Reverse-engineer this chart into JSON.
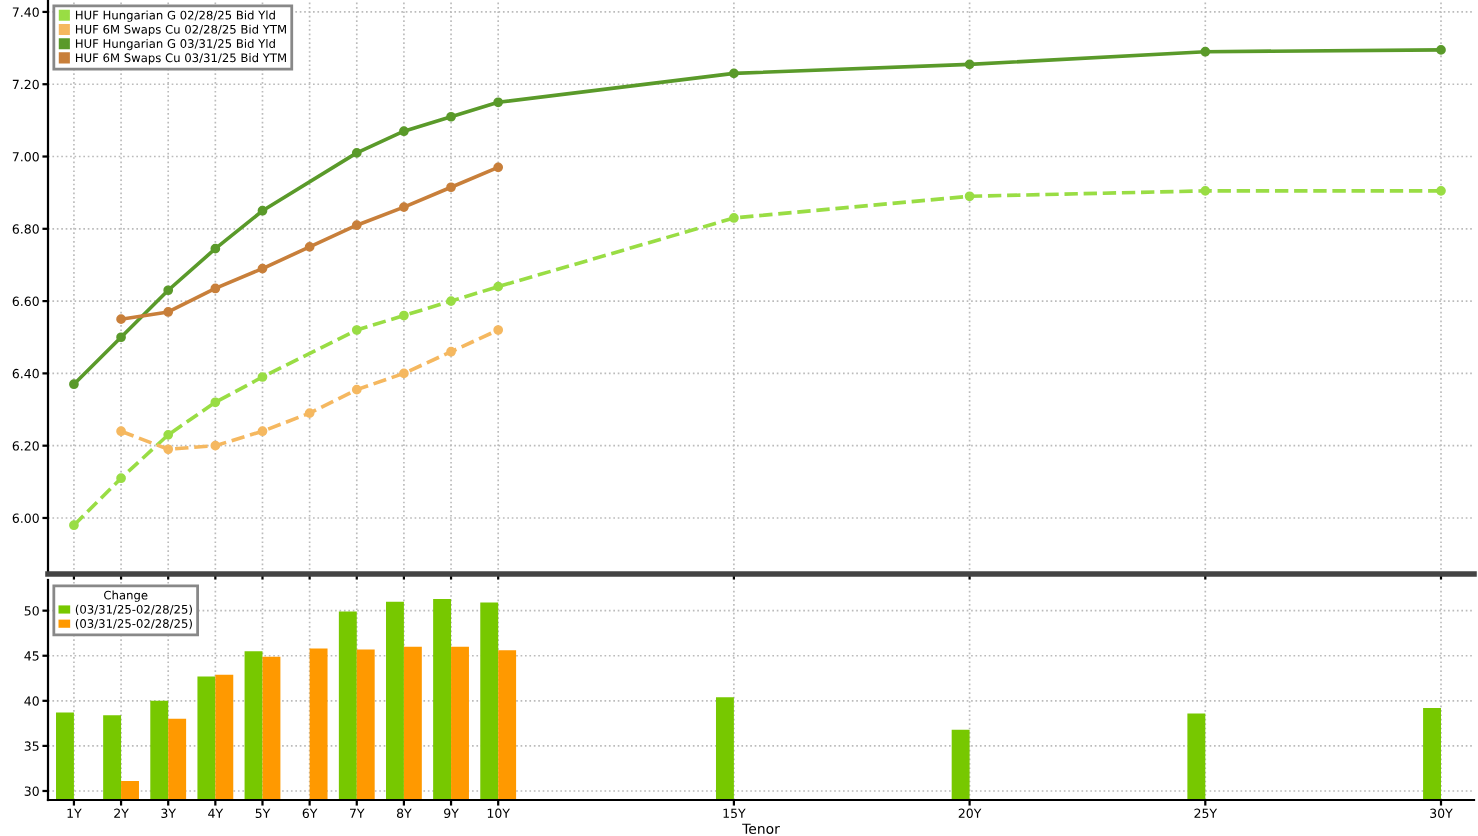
{
  "chart_data": [
    {
      "type": "line",
      "xlim": [
        0.45,
        30.7
      ],
      "ylim": [
        5.845,
        7.433
      ],
      "xticks": [
        {
          "value": 1,
          "label": null
        },
        {
          "value": 2,
          "label": null
        },
        {
          "value": 3,
          "label": null
        },
        {
          "value": 4,
          "label": null
        },
        {
          "value": 5,
          "label": null
        },
        {
          "value": 6,
          "label": null
        },
        {
          "value": 7,
          "label": null
        },
        {
          "value": 8,
          "label": null
        },
        {
          "value": 9,
          "label": null
        },
        {
          "value": 10,
          "label": null
        },
        {
          "value": 15,
          "label": null
        },
        {
          "value": 20,
          "label": null
        },
        {
          "value": 25,
          "label": null
        },
        {
          "value": 30,
          "label": null
        }
      ],
      "yticks": [
        {
          "value": 6.0,
          "label": "6.00"
        },
        {
          "value": 6.2,
          "label": "6.20"
        },
        {
          "value": 6.4,
          "label": "6.40"
        },
        {
          "value": 6.6,
          "label": "6.60"
        },
        {
          "value": 6.8,
          "label": "6.80"
        },
        {
          "value": 7.0,
          "label": "7.00"
        },
        {
          "value": 7.2,
          "label": "7.20"
        },
        {
          "value": 7.4,
          "label": "7.40"
        }
      ],
      "tick_labels": "y",
      "grid": true,
      "legend": "top left",
      "marker": "circle",
      "series": [
        {
          "name": "HUF Hungarian G 02/28/25 Bid Yld",
          "color": "#99dd44",
          "line_style": "dashed",
          "x": [
            1,
            2,
            3,
            4,
            5,
            7,
            8,
            9,
            10,
            15,
            20,
            25,
            30
          ],
          "values": [
            5.98,
            6.11,
            6.23,
            6.32,
            6.39,
            6.52,
            6.56,
            6.6,
            6.64,
            6.83,
            6.89,
            6.905,
            6.905
          ]
        },
        {
          "name": "HUF 6M Swaps Cu 02/28/25 Bid YTM",
          "color": "#f5b860",
          "line_style": "dashed",
          "x": [
            2,
            3,
            4,
            5,
            6,
            7,
            8,
            9,
            10
          ],
          "values": [
            6.24,
            6.19,
            6.2,
            6.24,
            6.29,
            6.355,
            6.4,
            6.46,
            6.52
          ]
        },
        {
          "name": "HUF Hungarian G 03/31/25 Bid Yld",
          "color": "#5a9a2a",
          "line_style": "solid",
          "x": [
            1,
            2,
            3,
            4,
            5,
            7,
            8,
            9,
            10,
            15,
            20,
            25,
            30
          ],
          "values": [
            6.37,
            6.5,
            6.63,
            6.745,
            6.85,
            7.01,
            7.07,
            7.11,
            7.15,
            7.23,
            7.255,
            7.29,
            7.295
          ]
        },
        {
          "name": "HUF 6M Swaps Cu 03/31/25 Bid YTM",
          "color": "#c87f3a",
          "line_style": "solid",
          "x": [
            2,
            3,
            4,
            5,
            6,
            7,
            8,
            9,
            10
          ],
          "values": [
            6.55,
            6.57,
            6.635,
            6.69,
            6.75,
            6.81,
            6.86,
            6.915,
            6.97
          ]
        }
      ]
    },
    {
      "type": "bar",
      "xlabel": "Tenor",
      "legend_title": "Change",
      "xlim": [
        0.45,
        30.7
      ],
      "ylim": [
        29,
        53.4
      ],
      "xticks": [
        {
          "value": 1,
          "label": "1Y"
        },
        {
          "value": 2,
          "label": "2Y"
        },
        {
          "value": 3,
          "label": "3Y"
        },
        {
          "value": 4,
          "label": "4Y"
        },
        {
          "value": 5,
          "label": "5Y"
        },
        {
          "value": 6,
          "label": "6Y"
        },
        {
          "value": 7,
          "label": "7Y"
        },
        {
          "value": 8,
          "label": "8Y"
        },
        {
          "value": 9,
          "label": "9Y"
        },
        {
          "value": 10,
          "label": "10Y"
        },
        {
          "value": 15,
          "label": "15Y"
        },
        {
          "value": 20,
          "label": "20Y"
        },
        {
          "value": 25,
          "label": "25Y"
        },
        {
          "value": 30,
          "label": "30Y"
        }
      ],
      "yticks": [
        30,
        35,
        40,
        45,
        50
      ],
      "grid": true,
      "legend": "top left",
      "series": [
        {
          "name": "(03/31/25-02/28/25)",
          "color": "#77c800",
          "x": [
            1,
            2,
            3,
            4,
            5,
            7,
            8,
            9,
            10,
            15,
            20,
            25,
            30
          ],
          "values": [
            38.7,
            38.4,
            40,
            42.7,
            45.5,
            49.9,
            51,
            51.3,
            50.9,
            40.4,
            36.8,
            38.6,
            39.2
          ]
        },
        {
          "name": "(03/31/25-02/28/25)",
          "color": "#ff9900",
          "x": [
            2,
            3,
            4,
            5,
            6,
            7,
            8,
            9,
            10
          ],
          "values": [
            31.1,
            38,
            42.9,
            44.9,
            45.8,
            45.7,
            46,
            46,
            45.6
          ]
        }
      ]
    }
  ]
}
